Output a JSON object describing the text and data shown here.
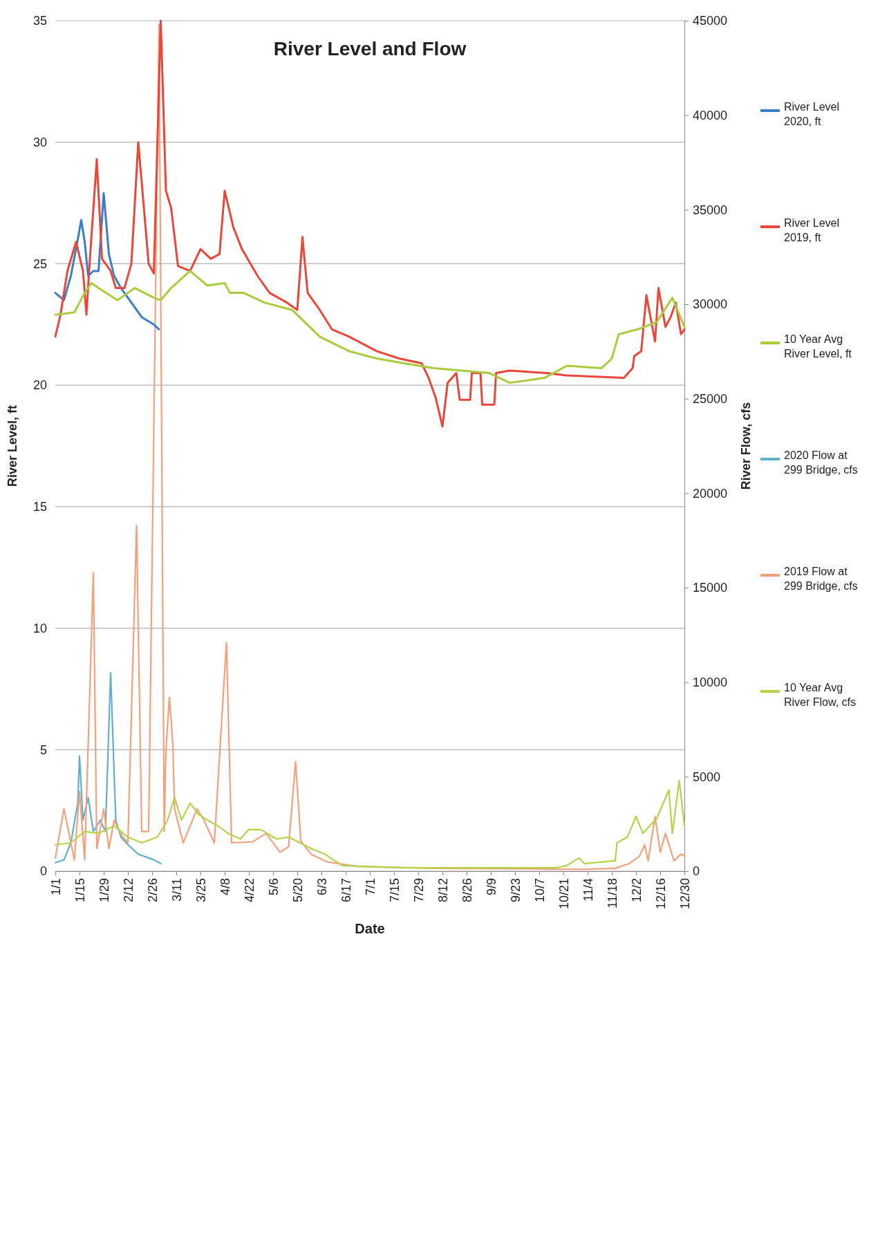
{
  "chart_data": {
    "type": "line",
    "title": "River Level and Flow",
    "xlabel": "Date",
    "ylabel": "River Level, ft",
    "y2label": "River Flow, cfs",
    "xlim": [
      "--01-01",
      "--12-30"
    ],
    "xticks": [
      {
        "value": "--01-01",
        "label": "1/1"
      },
      {
        "value": "--01-15",
        "label": "1/15"
      },
      {
        "value": "--01-29",
        "label": "1/29"
      },
      {
        "value": "--02-12",
        "label": "2/12"
      },
      {
        "value": "--02-26",
        "label": "2/26"
      },
      {
        "value": "--03-11",
        "label": "3/11"
      },
      {
        "value": "--03-25",
        "label": "3/25"
      },
      {
        "value": "--04-08",
        "label": "4/8"
      },
      {
        "value": "--04-22",
        "label": "4/22"
      },
      {
        "value": "--05-06",
        "label": "5/6"
      },
      {
        "value": "--05-20",
        "label": "5/20"
      },
      {
        "value": "--06-03",
        "label": "6/3"
      },
      {
        "value": "--06-17",
        "label": "6/17"
      },
      {
        "value": "--07-01",
        "label": "7/1"
      },
      {
        "value": "--07-15",
        "label": "7/15"
      },
      {
        "value": "--07-29",
        "label": "7/29"
      },
      {
        "value": "--08-12",
        "label": "8/12"
      },
      {
        "value": "--08-26",
        "label": "8/26"
      },
      {
        "value": "--09-09",
        "label": "9/9"
      },
      {
        "value": "--09-23",
        "label": "9/23"
      },
      {
        "value": "--10-07",
        "label": "10/7"
      },
      {
        "value": "--10-21",
        "label": "10/21"
      },
      {
        "value": "--11-04",
        "label": "11/4"
      },
      {
        "value": "--11-18",
        "label": "11/18"
      },
      {
        "value": "--12-02",
        "label": "12/2"
      },
      {
        "value": "--12-16",
        "label": "12/16"
      },
      {
        "value": "--12-30",
        "label": "12/30"
      }
    ],
    "ylim": [
      0,
      35
    ],
    "yticks": [
      0,
      5,
      10,
      15,
      20,
      25,
      30,
      35
    ],
    "y2lim": [
      0,
      45000
    ],
    "y2ticks": [
      0,
      5000,
      10000,
      15000,
      20000,
      25000,
      30000,
      35000,
      40000,
      45000
    ],
    "grid": "y",
    "legend": "right",
    "marker": "none",
    "line_style": "solid",
    "series": [
      {
        "name": "River Level 2020, ft",
        "color": "#3a7ec8",
        "x": [
          "--01-01",
          "--01-06",
          "--01-10",
          "--01-14",
          "--01-16",
          "--01-18",
          "--01-20",
          "--01-23",
          "--01-26",
          "--01-29",
          "--02-01",
          "--02-04",
          "--02-08",
          "--02-12",
          "--02-16",
          "--02-20",
          "--02-27",
          "--03-01"
        ],
        "values": [
          23.8,
          23.5,
          24.5,
          26.0,
          26.8,
          25.9,
          24.5,
          24.7,
          24.7,
          27.9,
          25.4,
          24.5,
          24.0,
          23.6,
          23.2,
          22.8,
          22.5,
          22.3
        ]
      },
      {
        "name": "River Level 2019, ft",
        "color": "#e8473a",
        "x": [
          "--01-01",
          "--01-04",
          "--01-08",
          "--01-13",
          "--01-17",
          "--01-19",
          "--01-21",
          "--01-25",
          "--01-28",
          "--02-02",
          "--02-05",
          "--02-10",
          "--02-14",
          "--02-18",
          "--02-24",
          "--02-27",
          "--03-02",
          "--03-05",
          "--03-08",
          "--03-12",
          "--03-19",
          "--03-25",
          "--03-31",
          "--04-05",
          "--04-08",
          "--04-13",
          "--04-18",
          "--04-27",
          "--05-04",
          "--05-14",
          "--05-20",
          "--05-23",
          "--05-26",
          "--06-02",
          "--06-09",
          "--06-19",
          "--07-05",
          "--07-18",
          "--07-31",
          "--08-04",
          "--08-08",
          "--08-12",
          "--08-15",
          "--08-20",
          "--08-22",
          "--08-28",
          "--08-29",
          "--09-03",
          "--09-04",
          "--09-11",
          "--09-12",
          "--09-20",
          "--10-11",
          "--10-23",
          "--11-25",
          "--11-30",
          "--12-01",
          "--12-05",
          "--12-08",
          "--12-13",
          "--12-15",
          "--12-19",
          "--12-22",
          "--12-25",
          "--12-28",
          "--12-30"
        ],
        "values": [
          22.0,
          22.9,
          24.7,
          25.9,
          24.7,
          22.9,
          25.2,
          29.3,
          25.2,
          24.7,
          24.0,
          24.0,
          25.0,
          30.0,
          25.0,
          24.6,
          35.0,
          28.0,
          27.3,
          24.9,
          24.7,
          25.6,
          25.2,
          25.4,
          28.0,
          26.5,
          25.6,
          24.5,
          23.8,
          23.4,
          23.1,
          26.1,
          23.8,
          23.1,
          22.3,
          22.0,
          21.4,
          21.1,
          20.9,
          20.3,
          19.5,
          18.3,
          20.1,
          20.5,
          19.4,
          19.4,
          20.5,
          20.5,
          19.2,
          19.2,
          20.5,
          20.6,
          20.5,
          20.4,
          20.3,
          20.7,
          21.2,
          21.4,
          23.7,
          21.8,
          24.0,
          22.4,
          22.8,
          23.4,
          22.1,
          22.3
        ]
      },
      {
        "name": "10 Year Avg River Level, ft",
        "color": "#a9cc3c",
        "x": [
          "--01-01",
          "--01-12",
          "--01-18",
          "--01-22",
          "--01-26",
          "--02-06",
          "--02-16",
          "--02-27",
          "--03-02",
          "--03-08",
          "--03-19",
          "--03-29",
          "--04-08",
          "--04-11",
          "--04-19",
          "--05-01",
          "--05-17",
          "--06-02",
          "--06-19",
          "--07-05",
          "--07-21",
          "--08-07",
          "--09-08",
          "--09-20",
          "--10-10",
          "--10-23",
          "--11-12",
          "--11-18",
          "--11-22",
          "--12-03",
          "--12-14",
          "--12-23",
          "--12-30"
        ],
        "values": [
          22.9,
          23.0,
          23.8,
          24.2,
          24.0,
          23.5,
          24.0,
          23.6,
          23.5,
          24.0,
          24.7,
          24.1,
          24.2,
          23.8,
          23.8,
          23.4,
          23.1,
          22.0,
          21.4,
          21.1,
          20.9,
          20.7,
          20.5,
          20.1,
          20.3,
          20.8,
          20.7,
          21.1,
          22.1,
          22.3,
          22.6,
          23.6,
          22.4
        ]
      },
      {
        "name": "2020 Flow at 299 Bridge, cfs",
        "color": "#5fb0cf",
        "axis": "y2",
        "x": [
          "--01-01",
          "--01-06",
          "--01-10",
          "--01-14",
          "--01-15",
          "--01-17",
          "--01-20",
          "--01-23",
          "--01-27",
          "--01-30",
          "--02-02",
          "--02-05",
          "--02-08",
          "--02-12",
          "--02-18",
          "--02-27",
          "--03-02"
        ],
        "values": [
          450,
          600,
          1500,
          3600,
          6100,
          2700,
          3900,
          2100,
          2700,
          2100,
          10500,
          2700,
          1800,
          1400,
          900,
          600,
          400
        ]
      },
      {
        "name": "2019 Flow at 299 Bridge, cfs",
        "color": "#f5a07a",
        "axis": "y2",
        "x": [
          "--01-01",
          "--01-06",
          "--01-12",
          "--01-15",
          "--01-18",
          "--01-23",
          "--01-25",
          "--01-29",
          "--02-01",
          "--02-04",
          "--02-09",
          "--02-12",
          "--02-17",
          "--02-20",
          "--02-24",
          "--03-01",
          "--03-04",
          "--03-05",
          "--03-07",
          "--03-09",
          "--03-10",
          "--03-15",
          "--03-23",
          "--03-27",
          "--04-02",
          "--04-09",
          "--04-12",
          "--04-24",
          "--05-02",
          "--05-10",
          "--05-15",
          "--05-19",
          "--05-22",
          "--05-28",
          "--06-06",
          "--06-24",
          "--08-07",
          "--11-02",
          "--11-20",
          "--11-28",
          "--12-04",
          "--12-07",
          "--12-09",
          "--12-13",
          "--12-16",
          "--12-19",
          "--12-24",
          "--12-28",
          "--12-30"
        ],
        "values": [
          700,
          3300,
          600,
          4200,
          600,
          15800,
          1200,
          3300,
          1200,
          2700,
          1800,
          1500,
          18300,
          2100,
          2100,
          44800,
          2100,
          6400,
          9200,
          6700,
          3300,
          1500,
          3300,
          2700,
          1500,
          12100,
          1500,
          1550,
          2000,
          1000,
          1300,
          5800,
          1600,
          900,
          500,
          250,
          150,
          100,
          150,
          400,
          800,
          1400,
          550,
          2900,
          1000,
          2000,
          550,
          900,
          800
        ]
      },
      {
        "name": "10 Year Avg River Flow, cfs",
        "color": "#b3d34a",
        "axis": "y2",
        "x": [
          "--01-01",
          "--01-10",
          "--01-18",
          "--01-26",
          "--02-04",
          "--02-12",
          "--02-20",
          "--02-29",
          "--03-06",
          "--03-10",
          "--03-14",
          "--03-19",
          "--03-24",
          "--03-29",
          "--04-04",
          "--04-10",
          "--04-17",
          "--04-22",
          "--04-29",
          "--05-08",
          "--05-15",
          "--05-28",
          "--06-05",
          "--06-15",
          "--07-20",
          "--09-11",
          "--10-16",
          "--10-23",
          "--10-30",
          "--11-02",
          "--11-20",
          "--11-21",
          "--11-27",
          "--12-02",
          "--12-06",
          "--12-14",
          "--12-21",
          "--12-23",
          "--12-27",
          "--12-30"
        ],
        "values": [
          1400,
          1500,
          2100,
          2000,
          2400,
          1800,
          1500,
          1800,
          2700,
          3900,
          2700,
          3600,
          3000,
          2700,
          2400,
          2000,
          1700,
          2200,
          2200,
          1700,
          1800,
          1200,
          900,
          300,
          175,
          175,
          175,
          300,
          700,
          400,
          550,
          1500,
          1800,
          2900,
          2000,
          2800,
          4300,
          2000,
          4800,
          2400
        ]
      }
    ]
  }
}
